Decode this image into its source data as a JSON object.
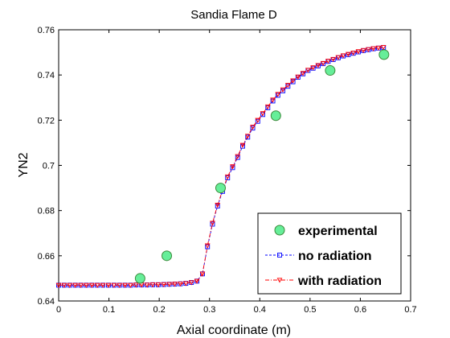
{
  "chart_data": {
    "type": "line",
    "title": "Sandia Flame D",
    "xlabel": "Axial coordinate (m)",
    "ylabel": "YN2",
    "xlim": [
      0,
      0.7
    ],
    "ylim": [
      0.64,
      0.76
    ],
    "xticks": [
      "0",
      "0.1",
      "0.2",
      "0.3",
      "0.4",
      "0.5",
      "0.6",
      "0.7"
    ],
    "yticks": [
      "0.64",
      "0.66",
      "0.68",
      "0.7",
      "0.72",
      "0.74",
      "0.76"
    ],
    "grid": false,
    "legend_position": "bottom-right",
    "series": [
      {
        "name": "experimental",
        "style": "marker",
        "marker": "circle",
        "color": "#3a8a3a",
        "fill": "#66ee99",
        "x": [
          0.162,
          0.215,
          0.322,
          0.432,
          0.54,
          0.647
        ],
        "y": [
          0.65,
          0.66,
          0.69,
          0.722,
          0.742,
          0.749
        ]
      },
      {
        "name": "no radiation",
        "style": "dashed",
        "marker": "square",
        "color": "#0000ff",
        "x": [
          0.0,
          0.011,
          0.022,
          0.033,
          0.044,
          0.055,
          0.066,
          0.077,
          0.088,
          0.099,
          0.11,
          0.121,
          0.132,
          0.143,
          0.154,
          0.165,
          0.176,
          0.187,
          0.198,
          0.209,
          0.22,
          0.231,
          0.242,
          0.253,
          0.264,
          0.275,
          0.286,
          0.296,
          0.306,
          0.316,
          0.326,
          0.336,
          0.346,
          0.356,
          0.366,
          0.376,
          0.386,
          0.396,
          0.406,
          0.416,
          0.426,
          0.436,
          0.446,
          0.456,
          0.466,
          0.476,
          0.486,
          0.496,
          0.506,
          0.516,
          0.526,
          0.536,
          0.546,
          0.556,
          0.566,
          0.576,
          0.586,
          0.596,
          0.606,
          0.616,
          0.626,
          0.636,
          0.646
        ],
        "y": [
          0.647,
          0.647,
          0.647,
          0.647,
          0.647,
          0.647,
          0.647,
          0.647,
          0.647,
          0.647,
          0.647,
          0.647,
          0.647,
          0.647,
          0.6471,
          0.6471,
          0.6471,
          0.6472,
          0.6472,
          0.6473,
          0.6474,
          0.6475,
          0.6476,
          0.6478,
          0.6482,
          0.6488,
          0.652,
          0.664,
          0.674,
          0.682,
          0.6885,
          0.6945,
          0.699,
          0.7035,
          0.7085,
          0.7125,
          0.7165,
          0.7195,
          0.7225,
          0.7255,
          0.7285,
          0.731,
          0.733,
          0.735,
          0.737,
          0.739,
          0.7405,
          0.742,
          0.743,
          0.744,
          0.745,
          0.746,
          0.7468,
          0.7476,
          0.7484,
          0.749,
          0.7496,
          0.7502,
          0.7508,
          0.7512,
          0.7516,
          0.7519,
          0.7522
        ]
      },
      {
        "name": "with radiation",
        "style": "dashdot",
        "marker": "triangle-down",
        "color": "#ff0000",
        "x": [
          0.0,
          0.011,
          0.022,
          0.033,
          0.044,
          0.055,
          0.066,
          0.077,
          0.088,
          0.099,
          0.11,
          0.121,
          0.132,
          0.143,
          0.154,
          0.165,
          0.176,
          0.187,
          0.198,
          0.209,
          0.22,
          0.231,
          0.242,
          0.253,
          0.264,
          0.275,
          0.286,
          0.296,
          0.306,
          0.316,
          0.326,
          0.336,
          0.346,
          0.356,
          0.366,
          0.376,
          0.386,
          0.396,
          0.406,
          0.416,
          0.426,
          0.436,
          0.446,
          0.456,
          0.466,
          0.476,
          0.486,
          0.496,
          0.506,
          0.516,
          0.526,
          0.536,
          0.546,
          0.556,
          0.566,
          0.576,
          0.586,
          0.596,
          0.606,
          0.616,
          0.626,
          0.636,
          0.646
        ],
        "y": [
          0.647,
          0.647,
          0.647,
          0.647,
          0.647,
          0.647,
          0.647,
          0.647,
          0.647,
          0.647,
          0.647,
          0.647,
          0.647,
          0.647,
          0.6471,
          0.6471,
          0.6471,
          0.6472,
          0.6472,
          0.6473,
          0.6474,
          0.6475,
          0.6476,
          0.6478,
          0.6482,
          0.6488,
          0.652,
          0.6645,
          0.6745,
          0.6825,
          0.689,
          0.695,
          0.6995,
          0.704,
          0.709,
          0.713,
          0.717,
          0.72,
          0.723,
          0.726,
          0.729,
          0.7315,
          0.7335,
          0.7355,
          0.7375,
          0.7392,
          0.7408,
          0.7422,
          0.7433,
          0.7443,
          0.7452,
          0.7462,
          0.747,
          0.7478,
          0.7486,
          0.7492,
          0.7498,
          0.7504,
          0.7509,
          0.7513,
          0.7517,
          0.752,
          0.7523
        ]
      }
    ]
  }
}
